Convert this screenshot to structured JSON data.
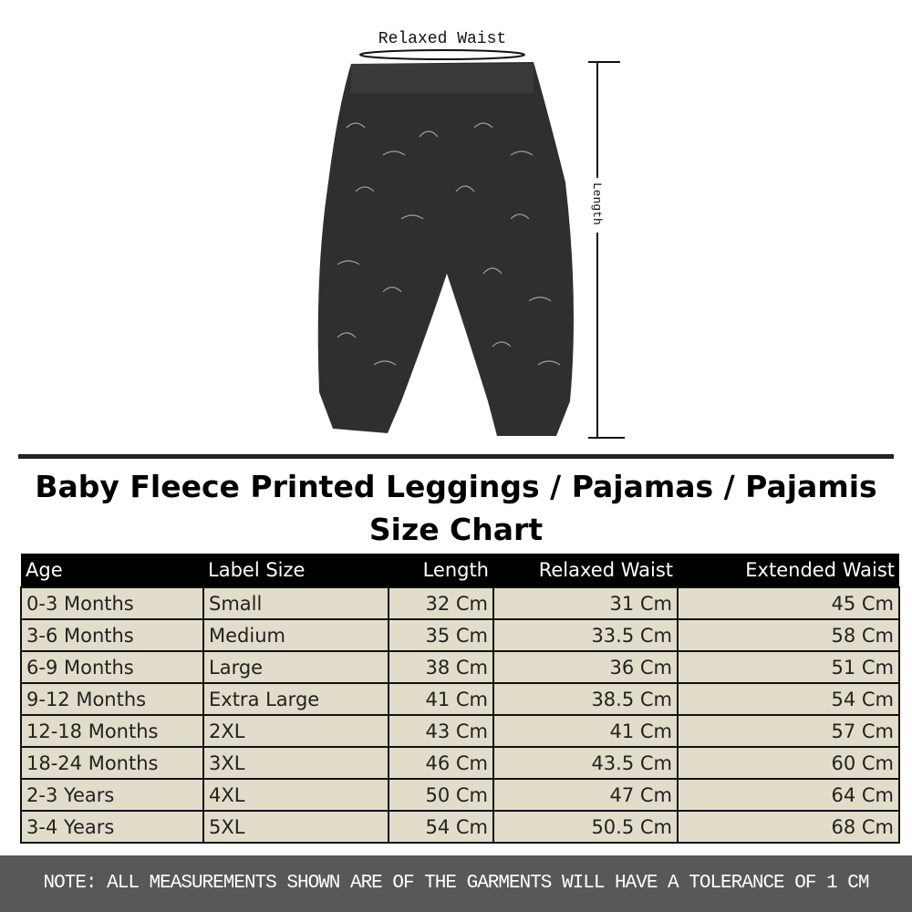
{
  "illustration": {
    "waist_label": "Relaxed Waist",
    "length_label": "Length",
    "garment_color": "#2f2f2f"
  },
  "title": {
    "line1": "Baby Fleece Printed Leggings  / Pajamas / Pajamis",
    "line2": "Size Chart"
  },
  "table": {
    "headers": [
      "Age",
      "Label Size",
      "Length",
      "Relaxed Waist",
      "Extended Waist"
    ],
    "rows": [
      [
        "0-3 Months",
        "Small",
        "32 Cm",
        "31 Cm",
        "45 Cm"
      ],
      [
        "3-6 Months",
        "Medium",
        "35 Cm",
        "33.5 Cm",
        "58 Cm"
      ],
      [
        "6-9 Months",
        "Large",
        "38 Cm",
        "36 Cm",
        "51 Cm"
      ],
      [
        "9-12  Months",
        "Extra Large",
        "41 Cm",
        "38.5 Cm",
        "54 Cm"
      ],
      [
        "12-18 Months",
        "2XL",
        "43 Cm",
        "41 Cm",
        "57 Cm"
      ],
      [
        "18-24 Months",
        "3XL",
        "46 Cm",
        "43.5 Cm",
        "60 Cm"
      ],
      [
        "2-3 Years",
        "4XL",
        "50 Cm",
        "47 Cm",
        "64 Cm"
      ],
      [
        "3-4 Years",
        "5XL",
        "54 Cm",
        "50.5 Cm",
        "68 Cm"
      ]
    ]
  },
  "footer": {
    "note": "NOTE: ALL MEASUREMENTS SHOWN ARE OF THE GARMENTS WILL HAVE A TOLERANCE OF 1 CM"
  },
  "colors": {
    "header_bg": "#000000",
    "cell_bg": "#e2dccb",
    "footer_bg": "#58585a"
  }
}
